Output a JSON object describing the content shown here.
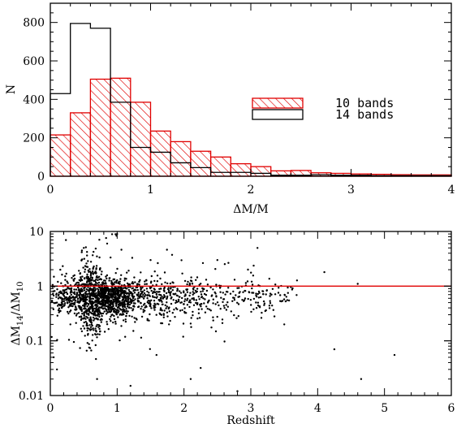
{
  "chart_data": [
    {
      "type": "histogram",
      "xlabel": "ΔM/M",
      "ylabel": "N",
      "xlim": [
        0,
        4
      ],
      "ylim": [
        0,
        900
      ],
      "x_ticks": [
        "0",
        "1",
        "2",
        "3",
        "4"
      ],
      "y_ticks": [
        "0",
        "200",
        "400",
        "600",
        "800"
      ],
      "bin_edges": [
        0,
        0.2,
        0.4,
        0.6,
        0.8,
        1.0,
        1.2,
        1.4,
        1.6,
        1.8,
        2.0,
        2.2,
        2.4,
        2.6,
        2.8,
        3.0,
        3.2,
        3.4,
        3.6,
        3.8,
        4.0
      ],
      "series": [
        {
          "name": "10 bands",
          "style": "hatched",
          "color": "#e00000",
          "values": [
            215,
            330,
            505,
            510,
            385,
            235,
            180,
            130,
            100,
            65,
            50,
            28,
            30,
            18,
            15,
            12,
            10,
            8,
            7,
            7
          ]
        },
        {
          "name": "14 bands",
          "style": "step",
          "color": "#000000",
          "values": [
            430,
            795,
            770,
            385,
            150,
            125,
            70,
            45,
            20,
            20,
            15,
            5,
            5,
            8,
            5,
            5,
            3,
            3,
            3,
            3
          ]
        }
      ],
      "legend_position": "center-right"
    },
    {
      "type": "scatter",
      "xlabel": "Redshift",
      "ylabel": "ΔM_14/ΔM_10",
      "xlim": [
        0,
        6
      ],
      "ylim": [
        0.01,
        10
      ],
      "y_scale": "log",
      "x_ticks": [
        "0",
        "1",
        "2",
        "3",
        "4",
        "5",
        "6"
      ],
      "y_ticks": [
        "0.01",
        "0.1",
        "1",
        "10"
      ],
      "reference_line": {
        "y": 1,
        "color": "#e00000"
      },
      "sample_points": [
        [
          0.05,
          0.05
        ],
        [
          0.1,
          0.03
        ],
        [
          0.15,
          2.0
        ],
        [
          0.3,
          0.2
        ],
        [
          0.5,
          5.0
        ],
        [
          0.7,
          0.02
        ],
        [
          0.85,
          6.0
        ],
        [
          1.0,
          9.0
        ],
        [
          1.2,
          0.015
        ],
        [
          1.5,
          3.0
        ],
        [
          2.1,
          0.02
        ],
        [
          2.5,
          3.0
        ],
        [
          2.8,
          0.012
        ],
        [
          3.1,
          5.0
        ],
        [
          3.5,
          0.2
        ],
        [
          4.1,
          1.8
        ],
        [
          4.25,
          0.07
        ],
        [
          4.6,
          1.1
        ],
        [
          4.65,
          0.02
        ],
        [
          5.15,
          0.055
        ]
      ],
      "point_color": "#000000"
    }
  ]
}
